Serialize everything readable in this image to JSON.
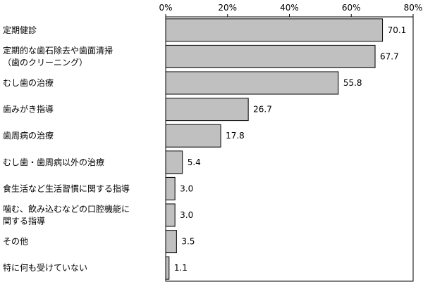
{
  "chart_data": {
    "type": "bar",
    "orientation": "horizontal",
    "categories": [
      [
        "定期健診"
      ],
      [
        "定期的な歯石除去や歯面清掃",
        "（歯のクリーニング）"
      ],
      [
        "むし歯の治療"
      ],
      [
        "歯みがき指導"
      ],
      [
        "歯周病の治療"
      ],
      [
        "むし歯・歯周病以外の治療"
      ],
      [
        "食生活など生活習慣に関する指導"
      ],
      [
        "噛む、飲み込むなどの口腔機能に",
        "関する指導"
      ],
      [
        "その他"
      ],
      [
        "特に何も受けていない"
      ]
    ],
    "values": [
      70.1,
      67.7,
      55.8,
      26.7,
      17.8,
      5.4,
      3.0,
      3.0,
      3.5,
      1.1
    ],
    "value_labels": [
      "70.1",
      "67.7",
      "55.8",
      "26.7",
      "17.8",
      "5.4",
      "3.0",
      "3.0",
      "3.5",
      "1.1"
    ],
    "xlim": [
      0,
      80
    ],
    "xticks": [
      0,
      20,
      40,
      60,
      80
    ],
    "xtick_labels": [
      "0%",
      "20%",
      "40%",
      "60%",
      "80%"
    ],
    "xaxis_position": "top",
    "grid": false,
    "legend": "none",
    "bar_color": "#c0c0c0"
  }
}
